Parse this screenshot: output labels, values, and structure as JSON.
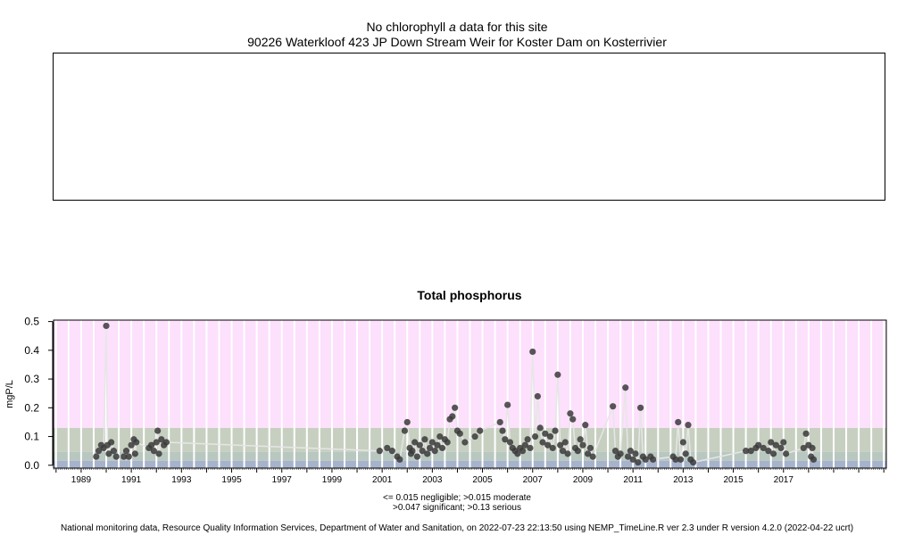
{
  "top_panel": {
    "message_prefix": "No chlorophyll",
    "message_italic": "a",
    "message_suffix": "data for this site",
    "site_title": "90226 Waterkloof 423 JP Down Stream Weir for Koster Dam on Kosterrivier"
  },
  "chart_data": {
    "type": "scatter",
    "title": "Total phosphorus",
    "ylabel": "mgP/L",
    "xlabel": "",
    "xlim": [
      1987.9,
      2021.1
    ],
    "ylim": [
      -0.01,
      0.505
    ],
    "x_ticks": [
      1989,
      1991,
      1993,
      1995,
      1997,
      1999,
      2001,
      2003,
      2005,
      2007,
      2009,
      2011,
      2013,
      2015,
      2017
    ],
    "y_ticks": [
      0.0,
      0.1,
      0.2,
      0.3,
      0.4,
      0.5
    ],
    "y_tick_labels": [
      "0.0",
      "0.1",
      "0.2",
      "0.3",
      "0.4",
      "0.5"
    ],
    "grid": "vertical white lines (monthly/yearly minor)",
    "bands": [
      {
        "label": "negligible",
        "from": -0.01,
        "to": 0.015,
        "color": "#a7b3cc"
      },
      {
        "label": "moderate",
        "from": 0.015,
        "to": 0.047,
        "color": "#b8c7c0"
      },
      {
        "label": "significant",
        "from": 0.047,
        "to": 0.13,
        "color": "#c7d0c0"
      },
      {
        "label": "serious",
        "from": 0.13,
        "to": 0.505,
        "color": "#fce0fc"
      }
    ],
    "legend_line1": "<= 0.015 negligible; >0.015 moderate",
    "legend_line2": ">0.047 significant; >0.13 serious",
    "points": [
      [
        1989.6,
        0.03
      ],
      [
        1989.7,
        0.05
      ],
      [
        1989.8,
        0.07
      ],
      [
        1989.9,
        0.06
      ],
      [
        1990.0,
        0.485
      ],
      [
        1990.05,
        0.07
      ],
      [
        1990.1,
        0.04
      ],
      [
        1990.2,
        0.08
      ],
      [
        1990.3,
        0.05
      ],
      [
        1990.4,
        0.03
      ],
      [
        1990.7,
        0.03
      ],
      [
        1990.8,
        0.05
      ],
      [
        1990.9,
        0.03
      ],
      [
        1991.0,
        0.07
      ],
      [
        1991.1,
        0.09
      ],
      [
        1991.15,
        0.04
      ],
      [
        1991.2,
        0.08
      ],
      [
        1991.7,
        0.06
      ],
      [
        1991.8,
        0.07
      ],
      [
        1991.9,
        0.05
      ],
      [
        1992.0,
        0.08
      ],
      [
        1992.05,
        0.12
      ],
      [
        1992.1,
        0.04
      ],
      [
        1992.2,
        0.09
      ],
      [
        1992.3,
        0.07
      ],
      [
        1992.4,
        0.08
      ],
      [
        2000.9,
        0.05
      ],
      [
        2001.2,
        0.06
      ],
      [
        2001.4,
        0.05
      ],
      [
        2001.6,
        0.03
      ],
      [
        2001.7,
        0.02
      ],
      [
        2001.9,
        0.12
      ],
      [
        2002.0,
        0.15
      ],
      [
        2002.1,
        0.06
      ],
      [
        2002.15,
        0.04
      ],
      [
        2002.2,
        0.05
      ],
      [
        2002.3,
        0.08
      ],
      [
        2002.4,
        0.03
      ],
      [
        2002.5,
        0.07
      ],
      [
        2002.6,
        0.05
      ],
      [
        2002.7,
        0.09
      ],
      [
        2002.8,
        0.04
      ],
      [
        2002.9,
        0.06
      ],
      [
        2003.0,
        0.08
      ],
      [
        2003.1,
        0.05
      ],
      [
        2003.2,
        0.07
      ],
      [
        2003.3,
        0.1
      ],
      [
        2003.4,
        0.06
      ],
      [
        2003.5,
        0.09
      ],
      [
        2003.6,
        0.08
      ],
      [
        2003.7,
        0.16
      ],
      [
        2003.8,
        0.17
      ],
      [
        2003.9,
        0.2
      ],
      [
        2004.0,
        0.12
      ],
      [
        2004.1,
        0.11
      ],
      [
        2004.3,
        0.08
      ],
      [
        2004.7,
        0.1
      ],
      [
        2004.9,
        0.12
      ],
      [
        2005.7,
        0.15
      ],
      [
        2005.8,
        0.12
      ],
      [
        2005.9,
        0.09
      ],
      [
        2006.0,
        0.21
      ],
      [
        2006.1,
        0.08
      ],
      [
        2006.2,
        0.06
      ],
      [
        2006.3,
        0.05
      ],
      [
        2006.4,
        0.04
      ],
      [
        2006.5,
        0.06
      ],
      [
        2006.6,
        0.05
      ],
      [
        2006.7,
        0.07
      ],
      [
        2006.8,
        0.09
      ],
      [
        2006.9,
        0.06
      ],
      [
        2007.0,
        0.395
      ],
      [
        2007.1,
        0.1
      ],
      [
        2007.2,
        0.24
      ],
      [
        2007.3,
        0.13
      ],
      [
        2007.4,
        0.08
      ],
      [
        2007.5,
        0.11
      ],
      [
        2007.6,
        0.07
      ],
      [
        2007.7,
        0.1
      ],
      [
        2007.8,
        0.06
      ],
      [
        2007.9,
        0.12
      ],
      [
        2008.0,
        0.315
      ],
      [
        2008.1,
        0.07
      ],
      [
        2008.2,
        0.05
      ],
      [
        2008.3,
        0.08
      ],
      [
        2008.4,
        0.04
      ],
      [
        2008.5,
        0.18
      ],
      [
        2008.6,
        0.16
      ],
      [
        2008.7,
        0.06
      ],
      [
        2008.8,
        0.05
      ],
      [
        2008.9,
        0.09
      ],
      [
        2009.0,
        0.07
      ],
      [
        2009.1,
        0.14
      ],
      [
        2009.2,
        0.04
      ],
      [
        2009.3,
        0.06
      ],
      [
        2009.4,
        0.03
      ],
      [
        2010.2,
        0.205
      ],
      [
        2010.3,
        0.05
      ],
      [
        2010.4,
        0.03
      ],
      [
        2010.5,
        0.04
      ],
      [
        2010.7,
        0.27
      ],
      [
        2010.8,
        0.03
      ],
      [
        2010.9,
        0.05
      ],
      [
        2011.0,
        0.02
      ],
      [
        2011.1,
        0.04
      ],
      [
        2011.2,
        0.01
      ],
      [
        2011.3,
        0.2
      ],
      [
        2011.4,
        0.03
      ],
      [
        2011.5,
        0.02
      ],
      [
        2011.7,
        0.03
      ],
      [
        2011.8,
        0.02
      ],
      [
        2012.6,
        0.03
      ],
      [
        2012.7,
        0.02
      ],
      [
        2012.8,
        0.15
      ],
      [
        2012.9,
        0.02
      ],
      [
        2013.0,
        0.08
      ],
      [
        2013.1,
        0.04
      ],
      [
        2013.2,
        0.14
      ],
      [
        2013.3,
        0.02
      ],
      [
        2013.4,
        0.01
      ],
      [
        2015.5,
        0.05
      ],
      [
        2015.7,
        0.05
      ],
      [
        2015.9,
        0.06
      ],
      [
        2016.0,
        0.07
      ],
      [
        2016.2,
        0.06
      ],
      [
        2016.4,
        0.05
      ],
      [
        2016.5,
        0.08
      ],
      [
        2016.6,
        0.04
      ],
      [
        2016.7,
        0.07
      ],
      [
        2016.9,
        0.06
      ],
      [
        2017.0,
        0.08
      ],
      [
        2017.1,
        0.04
      ],
      [
        2017.8,
        0.06
      ],
      [
        2017.9,
        0.11
      ],
      [
        2018.0,
        0.07
      ],
      [
        2018.1,
        0.03
      ],
      [
        2018.15,
        0.06
      ],
      [
        2018.2,
        0.02
      ]
    ]
  },
  "footer": "National monitoring data, Resource Quality Information Services, Department of Water and Sanitation, on 2022-07-23 22:13:50 using NEMP_TimeLine.R ver 2.3 under R version 4.2.0 (2022-04-22 ucrt)"
}
